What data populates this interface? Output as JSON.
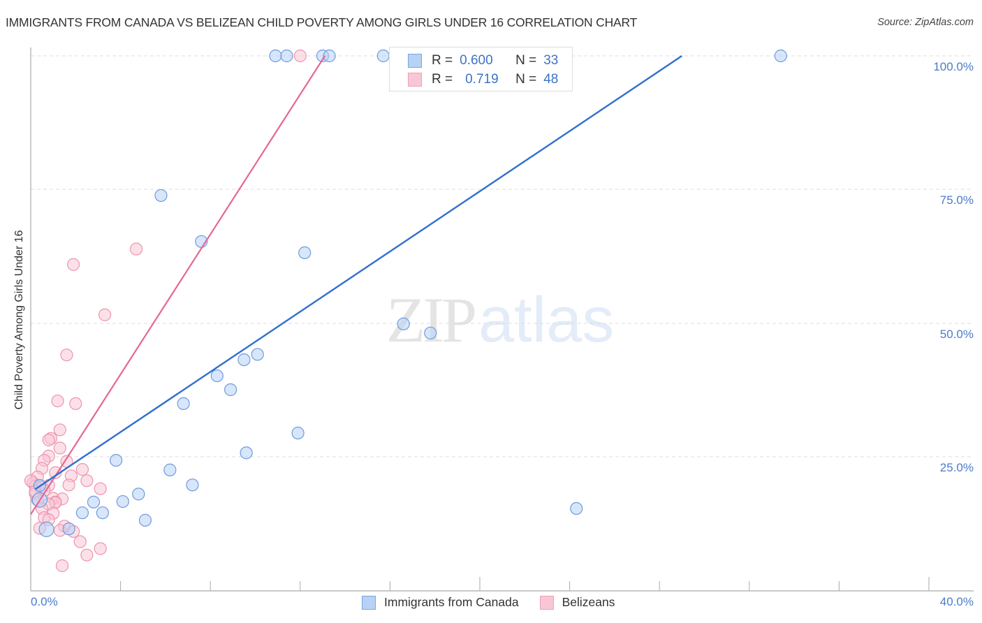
{
  "header": {
    "title": "IMMIGRANTS FROM CANADA VS BELIZEAN CHILD POVERTY AMONG GIRLS UNDER 16 CORRELATION CHART",
    "source": "Source: ZipAtlas.com"
  },
  "watermark": {
    "zip": "ZIP",
    "atlas": "atlas"
  },
  "legend_top": {
    "rows": [
      {
        "r_label": "R =",
        "r_value": "0.600",
        "n_label": "N =",
        "n_value": "33"
      },
      {
        "r_label": "R =",
        "r_value": "0.719",
        "n_label": "N =",
        "n_value": "48"
      }
    ]
  },
  "legend_bottom": {
    "items": [
      {
        "label": "Immigrants from Canada"
      },
      {
        "label": "Belizeans"
      }
    ]
  },
  "axes": {
    "ylabel": "Child Poverty Among Girls Under 16",
    "y_ticks": [
      "100.0%",
      "75.0%",
      "50.0%",
      "25.0%"
    ],
    "x_min_label": "0.0%",
    "x_max_label": "40.0%"
  },
  "colors": {
    "blue_fill": "#b7d2f5",
    "blue_stroke": "#6f9bdc",
    "blue_line": "#2f6fcf",
    "pink_fill": "#f9c6d6",
    "pink_stroke": "#ec94b0",
    "pink_line": "#e56791",
    "tick_text": "#4a7cc9"
  },
  "chart_data": {
    "type": "scatter",
    "title": "IMMIGRANTS FROM CANADA VS BELIZEAN CHILD POVERTY AMONG GIRLS UNDER 16 CORRELATION CHART",
    "xlabel": "",
    "ylabel": "Child Poverty Among Girls Under 16",
    "xlim": [
      0,
      40
    ],
    "ylim": [
      0,
      100
    ],
    "x_ticks": [
      "0.0%",
      "40.0%"
    ],
    "y_ticks": [
      "25.0%",
      "50.0%",
      "75.0%",
      "100.0%"
    ],
    "grid": true,
    "legend_position": "bottom",
    "series": [
      {
        "name": "Immigrants from Canada",
        "color": "#b7d2f5",
        "R": 0.6,
        "N": 33,
        "trendline": {
          "x": [
            0.2,
            29.0
          ],
          "y": [
            19.0,
            100.0
          ]
        },
        "points": [
          [
            10.9,
            100
          ],
          [
            11.4,
            100
          ],
          [
            13.0,
            100
          ],
          [
            13.3,
            100
          ],
          [
            15.7,
            100
          ],
          [
            17.3,
            100
          ],
          [
            33.4,
            100
          ],
          [
            5.8,
            73.9
          ],
          [
            7.6,
            65.3
          ],
          [
            12.2,
            63.2
          ],
          [
            16.6,
            49.9
          ],
          [
            17.8,
            48.2
          ],
          [
            10.1,
            44.2
          ],
          [
            9.5,
            43.2
          ],
          [
            8.3,
            40.2
          ],
          [
            8.9,
            37.6
          ],
          [
            6.8,
            35.0
          ],
          [
            11.9,
            29.5
          ],
          [
            9.6,
            25.8
          ],
          [
            3.8,
            24.4
          ],
          [
            6.2,
            22.6
          ],
          [
            7.2,
            19.8
          ],
          [
            4.8,
            18.1
          ],
          [
            2.8,
            16.6
          ],
          [
            4.1,
            16.7
          ],
          [
            5.1,
            13.2
          ],
          [
            2.3,
            14.6
          ],
          [
            3.2,
            14.6
          ],
          [
            24.3,
            15.4
          ],
          [
            0.7,
            11.5
          ],
          [
            1.7,
            11.6
          ],
          [
            0.4,
            17.0
          ],
          [
            0.4,
            19.7
          ]
        ]
      },
      {
        "name": "Belizeans",
        "color": "#f9c6d6",
        "R": 0.719,
        "N": 48,
        "trendline": {
          "x": [
            0.0,
            13.1
          ],
          "y": [
            14.3,
            100.0
          ]
        },
        "points": [
          [
            12.0,
            100
          ],
          [
            4.7,
            63.9
          ],
          [
            1.9,
            61.0
          ],
          [
            3.3,
            51.6
          ],
          [
            1.6,
            44.1
          ],
          [
            1.2,
            35.5
          ],
          [
            2.0,
            35.0
          ],
          [
            1.3,
            30.1
          ],
          [
            0.9,
            28.5
          ],
          [
            0.8,
            28.2
          ],
          [
            1.3,
            26.7
          ],
          [
            0.8,
            25.2
          ],
          [
            1.6,
            24.2
          ],
          [
            0.6,
            24.4
          ],
          [
            0.5,
            22.9
          ],
          [
            1.1,
            22.1
          ],
          [
            2.3,
            22.7
          ],
          [
            1.8,
            21.5
          ],
          [
            0.3,
            21.3
          ],
          [
            2.5,
            20.6
          ],
          [
            0.1,
            20.2
          ],
          [
            0.2,
            19.6
          ],
          [
            0.5,
            19.4
          ],
          [
            0.8,
            19.7
          ],
          [
            1.7,
            19.8
          ],
          [
            3.1,
            19.1
          ],
          [
            0.6,
            18.8
          ],
          [
            0.2,
            18.2
          ],
          [
            1.0,
            17.3
          ],
          [
            1.4,
            17.2
          ],
          [
            0.3,
            17.0
          ],
          [
            1.1,
            16.6
          ],
          [
            1.1,
            16.5
          ],
          [
            0.8,
            16.2
          ],
          [
            0.5,
            15.4
          ],
          [
            1.0,
            14.5
          ],
          [
            0.6,
            13.7
          ],
          [
            0.8,
            13.3
          ],
          [
            1.5,
            12.1
          ],
          [
            1.9,
            11.1
          ],
          [
            1.3,
            11.3
          ],
          [
            0.4,
            11.7
          ],
          [
            2.2,
            9.2
          ],
          [
            3.1,
            7.9
          ],
          [
            2.5,
            6.7
          ],
          [
            1.4,
            4.7
          ],
          [
            0.0,
            20.6
          ],
          [
            0.2,
            18.6
          ]
        ]
      }
    ]
  }
}
